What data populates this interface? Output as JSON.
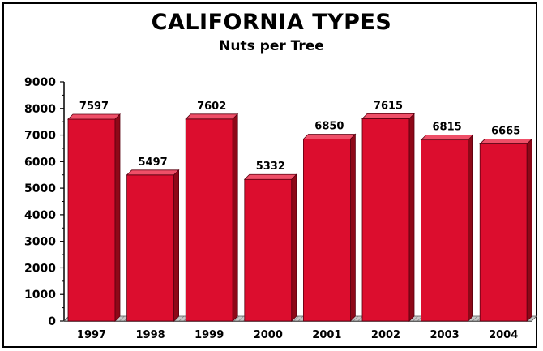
{
  "chart_data": {
    "type": "bar",
    "title": "CALIFORNIA TYPES",
    "subtitle": "Nuts per Tree",
    "categories": [
      "1997",
      "1998",
      "1999",
      "2000",
      "2001",
      "2002",
      "2003",
      "2004"
    ],
    "values": [
      7597,
      5497,
      7602,
      5332,
      6850,
      7615,
      6815,
      6665
    ],
    "data_labels": [
      "7597",
      "5497",
      "7602",
      "5332",
      "6850",
      "7615",
      "6815",
      "6665"
    ],
    "ylim": [
      0,
      9000
    ],
    "yticks": [
      0,
      1000,
      2000,
      3000,
      4000,
      5000,
      6000,
      7000,
      8000,
      9000
    ],
    "ytick_labels": [
      "0",
      "1000",
      "2000",
      "3000",
      "4000",
      "5000",
      "6000",
      "7000",
      "8000",
      "9000"
    ],
    "grid": false,
    "legend": "none",
    "colors": {
      "bar_front": "#dc0d2e",
      "bar_top": "#ef4f68",
      "bar_side": "#8e0818",
      "floor": "#bdbdbd"
    }
  }
}
